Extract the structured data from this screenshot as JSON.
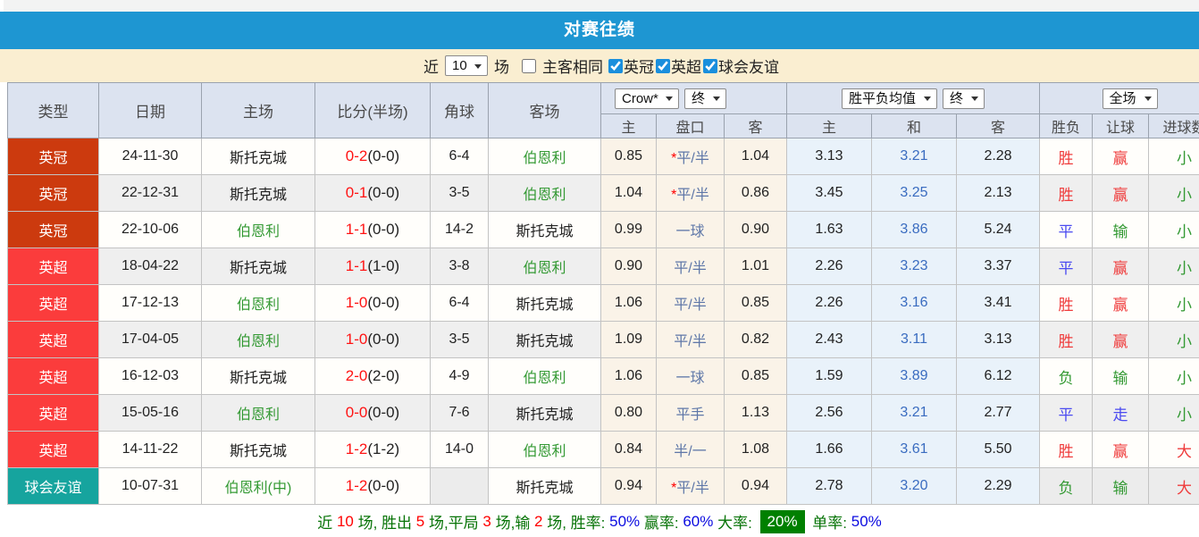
{
  "title": "对赛往绩",
  "filter": {
    "near": "近",
    "count": "10",
    "unit": "场",
    "same_venue": {
      "label": "主客相同",
      "checked": false
    },
    "leagues": [
      {
        "label": "英冠",
        "checked": true
      },
      {
        "label": "英超",
        "checked": true
      },
      {
        "label": "球会友谊",
        "checked": true
      }
    ]
  },
  "table": {
    "fixed_headers": [
      "类型",
      "日期",
      "主场",
      "比分(半场)",
      "角球",
      "客场"
    ],
    "odds_group": {
      "bookmaker": "Crow*",
      "time": "终",
      "cols": [
        "主",
        "盘口",
        "客"
      ]
    },
    "avg_group": {
      "name": "胜平负均值",
      "time": "终",
      "cols": [
        "主",
        "和",
        "客"
      ]
    },
    "result_group": {
      "scope": "全场",
      "cols": [
        "胜负",
        "让球",
        "进球数"
      ]
    },
    "rows": [
      {
        "league": "英冠",
        "league_key": "championship",
        "date": "24-11-30",
        "home": "斯托克城",
        "home_class": "c-dark",
        "score": "0-2",
        "half": "(0-0)",
        "corners": "6-4",
        "away": "伯恩利",
        "away_class": "c-green",
        "odds_home": "0.85",
        "handicap_star": "*",
        "handicap": "平/半",
        "odds_away": "1.04",
        "avg_home": "3.13",
        "avg_draw": "3.21",
        "avg_away": "2.28",
        "result": "胜",
        "result_class": "c-red",
        "handicap_result": "赢",
        "handicap_result_class": "c-red",
        "goals": "小",
        "goals_class": "c-green",
        "shaded": false
      },
      {
        "league": "英冠",
        "league_key": "championship",
        "date": "22-12-31",
        "home": "斯托克城",
        "home_class": "c-dark",
        "score": "0-1",
        "half": "(0-0)",
        "corners": "3-5",
        "away": "伯恩利",
        "away_class": "c-green",
        "odds_home": "1.04",
        "handicap_star": "*",
        "handicap": "平/半",
        "odds_away": "0.86",
        "avg_home": "3.45",
        "avg_draw": "3.25",
        "avg_away": "2.13",
        "result": "胜",
        "result_class": "c-red",
        "handicap_result": "赢",
        "handicap_result_class": "c-red",
        "goals": "小",
        "goals_class": "c-green",
        "shaded": true
      },
      {
        "league": "英冠",
        "league_key": "championship",
        "date": "22-10-06",
        "home": "伯恩利",
        "home_class": "c-green",
        "score": "1-1",
        "half": "(0-0)",
        "corners": "14-2",
        "away": "斯托克城",
        "away_class": "c-dark",
        "odds_home": "0.99",
        "handicap_star": "",
        "handicap": "一球",
        "odds_away": "0.90",
        "avg_home": "1.63",
        "avg_draw": "3.86",
        "avg_away": "5.24",
        "result": "平",
        "result_class": "c-blue",
        "handicap_result": "输",
        "handicap_result_class": "c-green",
        "goals": "小",
        "goals_class": "c-green",
        "shaded": false
      },
      {
        "league": "英超",
        "league_key": "premier",
        "date": "18-04-22",
        "home": "斯托克城",
        "home_class": "c-dark",
        "score": "1-1",
        "half": "(1-0)",
        "corners": "3-8",
        "away": "伯恩利",
        "away_class": "c-green",
        "odds_home": "0.90",
        "handicap_star": "",
        "handicap": "平/半",
        "odds_away": "1.01",
        "avg_home": "2.26",
        "avg_draw": "3.23",
        "avg_away": "3.37",
        "result": "平",
        "result_class": "c-blue",
        "handicap_result": "赢",
        "handicap_result_class": "c-red",
        "goals": "小",
        "goals_class": "c-green",
        "shaded": true
      },
      {
        "league": "英超",
        "league_key": "premier",
        "date": "17-12-13",
        "home": "伯恩利",
        "home_class": "c-green",
        "score": "1-0",
        "half": "(0-0)",
        "corners": "6-4",
        "away": "斯托克城",
        "away_class": "c-dark",
        "odds_home": "1.06",
        "handicap_star": "",
        "handicap": "平/半",
        "odds_away": "0.85",
        "avg_home": "2.26",
        "avg_draw": "3.16",
        "avg_away": "3.41",
        "result": "胜",
        "result_class": "c-red",
        "handicap_result": "赢",
        "handicap_result_class": "c-red",
        "goals": "小",
        "goals_class": "c-green",
        "shaded": false
      },
      {
        "league": "英超",
        "league_key": "premier",
        "date": "17-04-05",
        "home": "伯恩利",
        "home_class": "c-green",
        "score": "1-0",
        "half": "(0-0)",
        "corners": "3-5",
        "away": "斯托克城",
        "away_class": "c-dark",
        "odds_home": "1.09",
        "handicap_star": "",
        "handicap": "平/半",
        "odds_away": "0.82",
        "avg_home": "2.43",
        "avg_draw": "3.11",
        "avg_away": "3.13",
        "result": "胜",
        "result_class": "c-red",
        "handicap_result": "赢",
        "handicap_result_class": "c-red",
        "goals": "小",
        "goals_class": "c-green",
        "shaded": true
      },
      {
        "league": "英超",
        "league_key": "premier",
        "date": "16-12-03",
        "home": "斯托克城",
        "home_class": "c-dark",
        "score": "2-0",
        "half": "(2-0)",
        "corners": "4-9",
        "away": "伯恩利",
        "away_class": "c-green",
        "odds_home": "1.06",
        "handicap_star": "",
        "handicap": "一球",
        "odds_away": "0.85",
        "avg_home": "1.59",
        "avg_draw": "3.89",
        "avg_away": "6.12",
        "result": "负",
        "result_class": "c-green",
        "handicap_result": "输",
        "handicap_result_class": "c-green",
        "goals": "小",
        "goals_class": "c-green",
        "shaded": false
      },
      {
        "league": "英超",
        "league_key": "premier",
        "date": "15-05-16",
        "home": "伯恩利",
        "home_class": "c-green",
        "score": "0-0",
        "half": "(0-0)",
        "corners": "7-6",
        "away": "斯托克城",
        "away_class": "c-dark",
        "odds_home": "0.80",
        "handicap_star": "",
        "handicap": "平手",
        "odds_away": "1.13",
        "avg_home": "2.56",
        "avg_draw": "3.21",
        "avg_away": "2.77",
        "result": "平",
        "result_class": "c-blue",
        "handicap_result": "走",
        "handicap_result_class": "c-blue",
        "goals": "小",
        "goals_class": "c-green",
        "shaded": true
      },
      {
        "league": "英超",
        "league_key": "premier",
        "date": "14-11-22",
        "home": "斯托克城",
        "home_class": "c-dark",
        "score": "1-2",
        "half": "(1-2)",
        "corners": "14-0",
        "away": "伯恩利",
        "away_class": "c-green",
        "odds_home": "0.84",
        "handicap_star": "",
        "handicap": "半/一",
        "odds_away": "1.08",
        "avg_home": "1.66",
        "avg_draw": "3.61",
        "avg_away": "5.50",
        "result": "胜",
        "result_class": "c-red",
        "handicap_result": "赢",
        "handicap_result_class": "c-red",
        "goals": "大",
        "goals_class": "c-red",
        "shaded": false
      },
      {
        "league": "球会友谊",
        "league_key": "friendly",
        "date": "10-07-31",
        "home": "伯恩利(中)",
        "home_class": "c-green",
        "score": "1-2",
        "half": "(0-0)",
        "corners": "",
        "away": "斯托克城",
        "away_class": "c-dark",
        "odds_home": "0.94",
        "handicap_star": "*",
        "handicap": "平/半",
        "odds_away": "0.94",
        "avg_home": "2.78",
        "avg_draw": "3.20",
        "avg_away": "2.29",
        "result": "负",
        "result_class": "c-green",
        "handicap_result": "输",
        "handicap_result_class": "c-green",
        "goals": "大",
        "goals_class": "c-red",
        "shaded": false,
        "corner_shaded": true,
        "tail_shaded": true
      }
    ]
  },
  "summary": {
    "segments": [
      {
        "text": "近 ",
        "class": "s-label"
      },
      {
        "text": "10",
        "class": "s-num"
      },
      {
        "text": " 场, 胜出 ",
        "class": "s-label"
      },
      {
        "text": "5",
        "class": "s-num"
      },
      {
        "text": " 场,平局 ",
        "class": "s-label"
      },
      {
        "text": "3",
        "class": "s-num"
      },
      {
        "text": " 场,输 ",
        "class": "s-label"
      },
      {
        "text": "2",
        "class": "s-num"
      },
      {
        "text": " 场, 胜率: ",
        "class": "s-label"
      },
      {
        "text": "50%",
        "class": "s-pct"
      },
      {
        "text": " 赢率: ",
        "class": "s-label"
      },
      {
        "text": "60%",
        "class": "s-pct"
      },
      {
        "text": " 大率: ",
        "class": "s-label"
      },
      {
        "text": "20%",
        "class": "s-pct-green"
      },
      {
        "text": " 单率: ",
        "class": "s-label"
      },
      {
        "text": "50%",
        "class": "s-pct"
      }
    ]
  },
  "colors": {
    "accent_blue": "#1e96d2",
    "league_championship": "#cc3a0e",
    "league_premier": "#fb3c3c",
    "league_friendly": "#16a49e",
    "summary_highlight_bg": "#008000"
  }
}
